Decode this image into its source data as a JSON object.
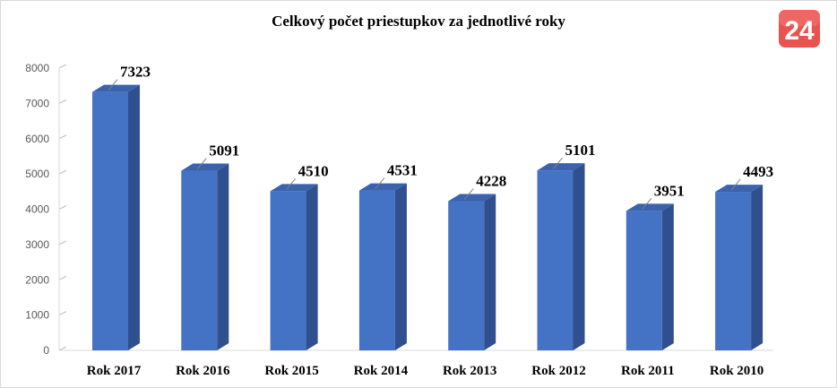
{
  "chart_data": {
    "type": "bar",
    "title": "Celkový počet priestupkov za jednotlivé roky",
    "categories": [
      "Rok 2017",
      "Rok 2016",
      "Rok 2015",
      "Rok 2014",
      "Rok 2013",
      "Rok 2012",
      "Rok 2011",
      "Rok 2010"
    ],
    "values": [
      7323,
      5091,
      4510,
      4531,
      4228,
      5101,
      3951,
      4493
    ],
    "ylim": [
      0,
      8000
    ],
    "yticks": [
      0,
      1000,
      2000,
      3000,
      4000,
      5000,
      6000,
      7000,
      8000
    ],
    "grid": false,
    "legend": "none",
    "bar_color": "#4472c4",
    "bar_side_color": "#2f4f8f",
    "bar_top_color": "#3a62ad"
  },
  "logo": {
    "text": "24",
    "color": "#e8534f"
  }
}
